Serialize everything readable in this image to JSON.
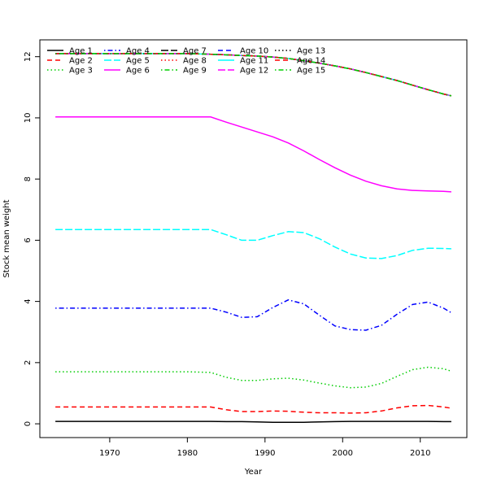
{
  "chart_data": {
    "type": "line",
    "xlabel": "Year",
    "ylabel": "Stock mean weight",
    "xlim": [
      1961,
      2016
    ],
    "ylim": [
      -0.45,
      12.55
    ],
    "x_ticks": [
      1970,
      1980,
      1990,
      2000,
      2010
    ],
    "y_ticks": [
      0,
      2,
      4,
      6,
      8,
      10,
      12
    ],
    "grid": false,
    "legend_position": "top-left",
    "x": [
      1963,
      1965,
      1970,
      1975,
      1980,
      1983,
      1985,
      1987,
      1989,
      1991,
      1993,
      1995,
      1997,
      1999,
      2001,
      2003,
      2005,
      2007,
      2009,
      2011,
      2013,
      2014
    ],
    "series": [
      {
        "name": "Age 1",
        "color": "#000000",
        "dash": "solid",
        "values": [
          0.08,
          0.08,
          0.08,
          0.08,
          0.08,
          0.08,
          0.07,
          0.07,
          0.06,
          0.05,
          0.05,
          0.05,
          0.06,
          0.07,
          0.08,
          0.08,
          0.08,
          0.08,
          0.08,
          0.08,
          0.07,
          0.07
        ]
      },
      {
        "name": "Age 2",
        "color": "#ff0000",
        "dash": "dashed",
        "values": [
          0.55,
          0.55,
          0.55,
          0.55,
          0.55,
          0.55,
          0.46,
          0.4,
          0.4,
          0.42,
          0.41,
          0.38,
          0.36,
          0.36,
          0.35,
          0.36,
          0.42,
          0.52,
          0.59,
          0.6,
          0.55,
          0.51
        ]
      },
      {
        "name": "Age 3",
        "color": "#00cd00",
        "dash": "dotted",
        "values": [
          1.7,
          1.7,
          1.7,
          1.7,
          1.7,
          1.68,
          1.52,
          1.42,
          1.42,
          1.47,
          1.49,
          1.43,
          1.33,
          1.24,
          1.18,
          1.2,
          1.32,
          1.55,
          1.77,
          1.85,
          1.8,
          1.72
        ]
      },
      {
        "name": "Age 4",
        "color": "#0000ff",
        "dash": "dotdash",
        "values": [
          3.78,
          3.78,
          3.78,
          3.78,
          3.78,
          3.78,
          3.65,
          3.48,
          3.5,
          3.8,
          4.05,
          3.92,
          3.55,
          3.2,
          3.08,
          3.06,
          3.22,
          3.58,
          3.9,
          3.98,
          3.78,
          3.63
        ]
      },
      {
        "name": "Age 5",
        "color": "#00ffff",
        "dash": "longdash",
        "values": [
          6.35,
          6.35,
          6.35,
          6.35,
          6.35,
          6.35,
          6.18,
          6.0,
          6.0,
          6.15,
          6.28,
          6.25,
          6.05,
          5.78,
          5.55,
          5.42,
          5.4,
          5.5,
          5.67,
          5.74,
          5.73,
          5.72
        ]
      },
      {
        "name": "Age 6",
        "color": "#ff00ff",
        "dash": "solid",
        "values": [
          10.03,
          10.03,
          10.03,
          10.03,
          10.03,
          10.03,
          9.86,
          9.7,
          9.54,
          9.38,
          9.18,
          8.92,
          8.64,
          8.37,
          8.13,
          7.93,
          7.78,
          7.68,
          7.63,
          7.61,
          7.6,
          7.58
        ]
      },
      {
        "name": "Age 7",
        "color": "#000000",
        "dash": "longdash",
        "values": [
          12.1,
          12.1,
          12.1,
          12.1,
          12.1,
          12.08,
          12.06,
          12.04,
          12.02,
          11.99,
          11.94,
          11.87,
          11.79,
          11.7,
          11.6,
          11.48,
          11.35,
          11.22,
          11.07,
          10.92,
          10.78,
          10.72
        ]
      },
      {
        "name": "Age 8",
        "color": "#ff0000",
        "dash": "dotted",
        "values": [
          12.1,
          12.1,
          12.1,
          12.1,
          12.1,
          12.08,
          12.06,
          12.04,
          12.02,
          11.99,
          11.94,
          11.87,
          11.79,
          11.7,
          11.6,
          11.48,
          11.35,
          11.22,
          11.07,
          10.92,
          10.78,
          10.72
        ]
      },
      {
        "name": "Age 9",
        "color": "#00cd00",
        "dash": "dotdash",
        "values": [
          12.1,
          12.1,
          12.1,
          12.1,
          12.1,
          12.08,
          12.06,
          12.04,
          12.02,
          11.99,
          11.94,
          11.87,
          11.79,
          11.7,
          11.6,
          11.48,
          11.35,
          11.22,
          11.07,
          10.92,
          10.78,
          10.72
        ]
      },
      {
        "name": "Age 10",
        "color": "#0000ff",
        "dash": "dashed",
        "values": [
          12.1,
          12.1,
          12.1,
          12.1,
          12.1,
          12.08,
          12.06,
          12.04,
          12.02,
          11.99,
          11.94,
          11.87,
          11.79,
          11.7,
          11.6,
          11.48,
          11.35,
          11.22,
          11.07,
          10.92,
          10.78,
          10.72
        ]
      },
      {
        "name": "Age 11",
        "color": "#00ffff",
        "dash": "solid",
        "values": [
          12.1,
          12.1,
          12.1,
          12.1,
          12.1,
          12.08,
          12.06,
          12.04,
          12.02,
          11.99,
          11.94,
          11.87,
          11.79,
          11.7,
          11.6,
          11.48,
          11.35,
          11.22,
          11.07,
          10.92,
          10.78,
          10.72
        ]
      },
      {
        "name": "Age 12",
        "color": "#ff00ff",
        "dash": "longdash",
        "values": [
          12.1,
          12.1,
          12.1,
          12.1,
          12.1,
          12.08,
          12.06,
          12.04,
          12.02,
          11.99,
          11.94,
          11.87,
          11.79,
          11.7,
          11.6,
          11.48,
          11.35,
          11.22,
          11.07,
          10.92,
          10.78,
          10.72
        ]
      },
      {
        "name": "Age 13",
        "color": "#000000",
        "dash": "dotted",
        "values": [
          12.1,
          12.1,
          12.1,
          12.1,
          12.1,
          12.08,
          12.06,
          12.04,
          12.02,
          11.99,
          11.94,
          11.87,
          11.79,
          11.7,
          11.6,
          11.48,
          11.35,
          11.22,
          11.07,
          10.92,
          10.78,
          10.72
        ]
      },
      {
        "name": "Age 14",
        "color": "#ff0000",
        "dash": "dashed",
        "values": [
          12.1,
          12.1,
          12.1,
          12.1,
          12.1,
          12.08,
          12.06,
          12.04,
          12.02,
          11.99,
          11.94,
          11.87,
          11.79,
          11.7,
          11.6,
          11.48,
          11.35,
          11.22,
          11.07,
          10.92,
          10.78,
          10.72
        ]
      },
      {
        "name": "Age 15",
        "color": "#00cd00",
        "dash": "dotdash",
        "values": [
          12.1,
          12.1,
          12.1,
          12.1,
          12.1,
          12.08,
          12.06,
          12.04,
          12.02,
          11.99,
          11.94,
          11.87,
          11.79,
          11.7,
          11.6,
          11.48,
          11.35,
          11.22,
          11.07,
          10.92,
          10.78,
          10.72
        ]
      }
    ]
  }
}
